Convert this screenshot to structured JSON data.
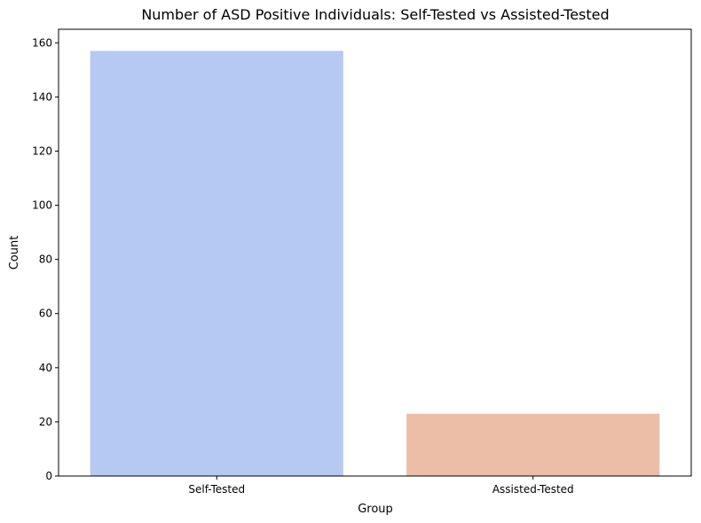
{
  "chart_data": {
    "type": "bar",
    "title": "Number of ASD Positive Individuals: Self-Tested vs Assisted-Tested",
    "xlabel": "Group",
    "ylabel": "Count",
    "categories": [
      "Self-Tested",
      "Assisted-Tested"
    ],
    "values": [
      157,
      23
    ],
    "colors": [
      "#b5c9f3",
      "#ecbda7"
    ],
    "ylim": [
      0,
      165
    ],
    "yticks": [
      0,
      20,
      40,
      60,
      80,
      100,
      120,
      140,
      160
    ],
    "grid": false,
    "legend": "none"
  }
}
